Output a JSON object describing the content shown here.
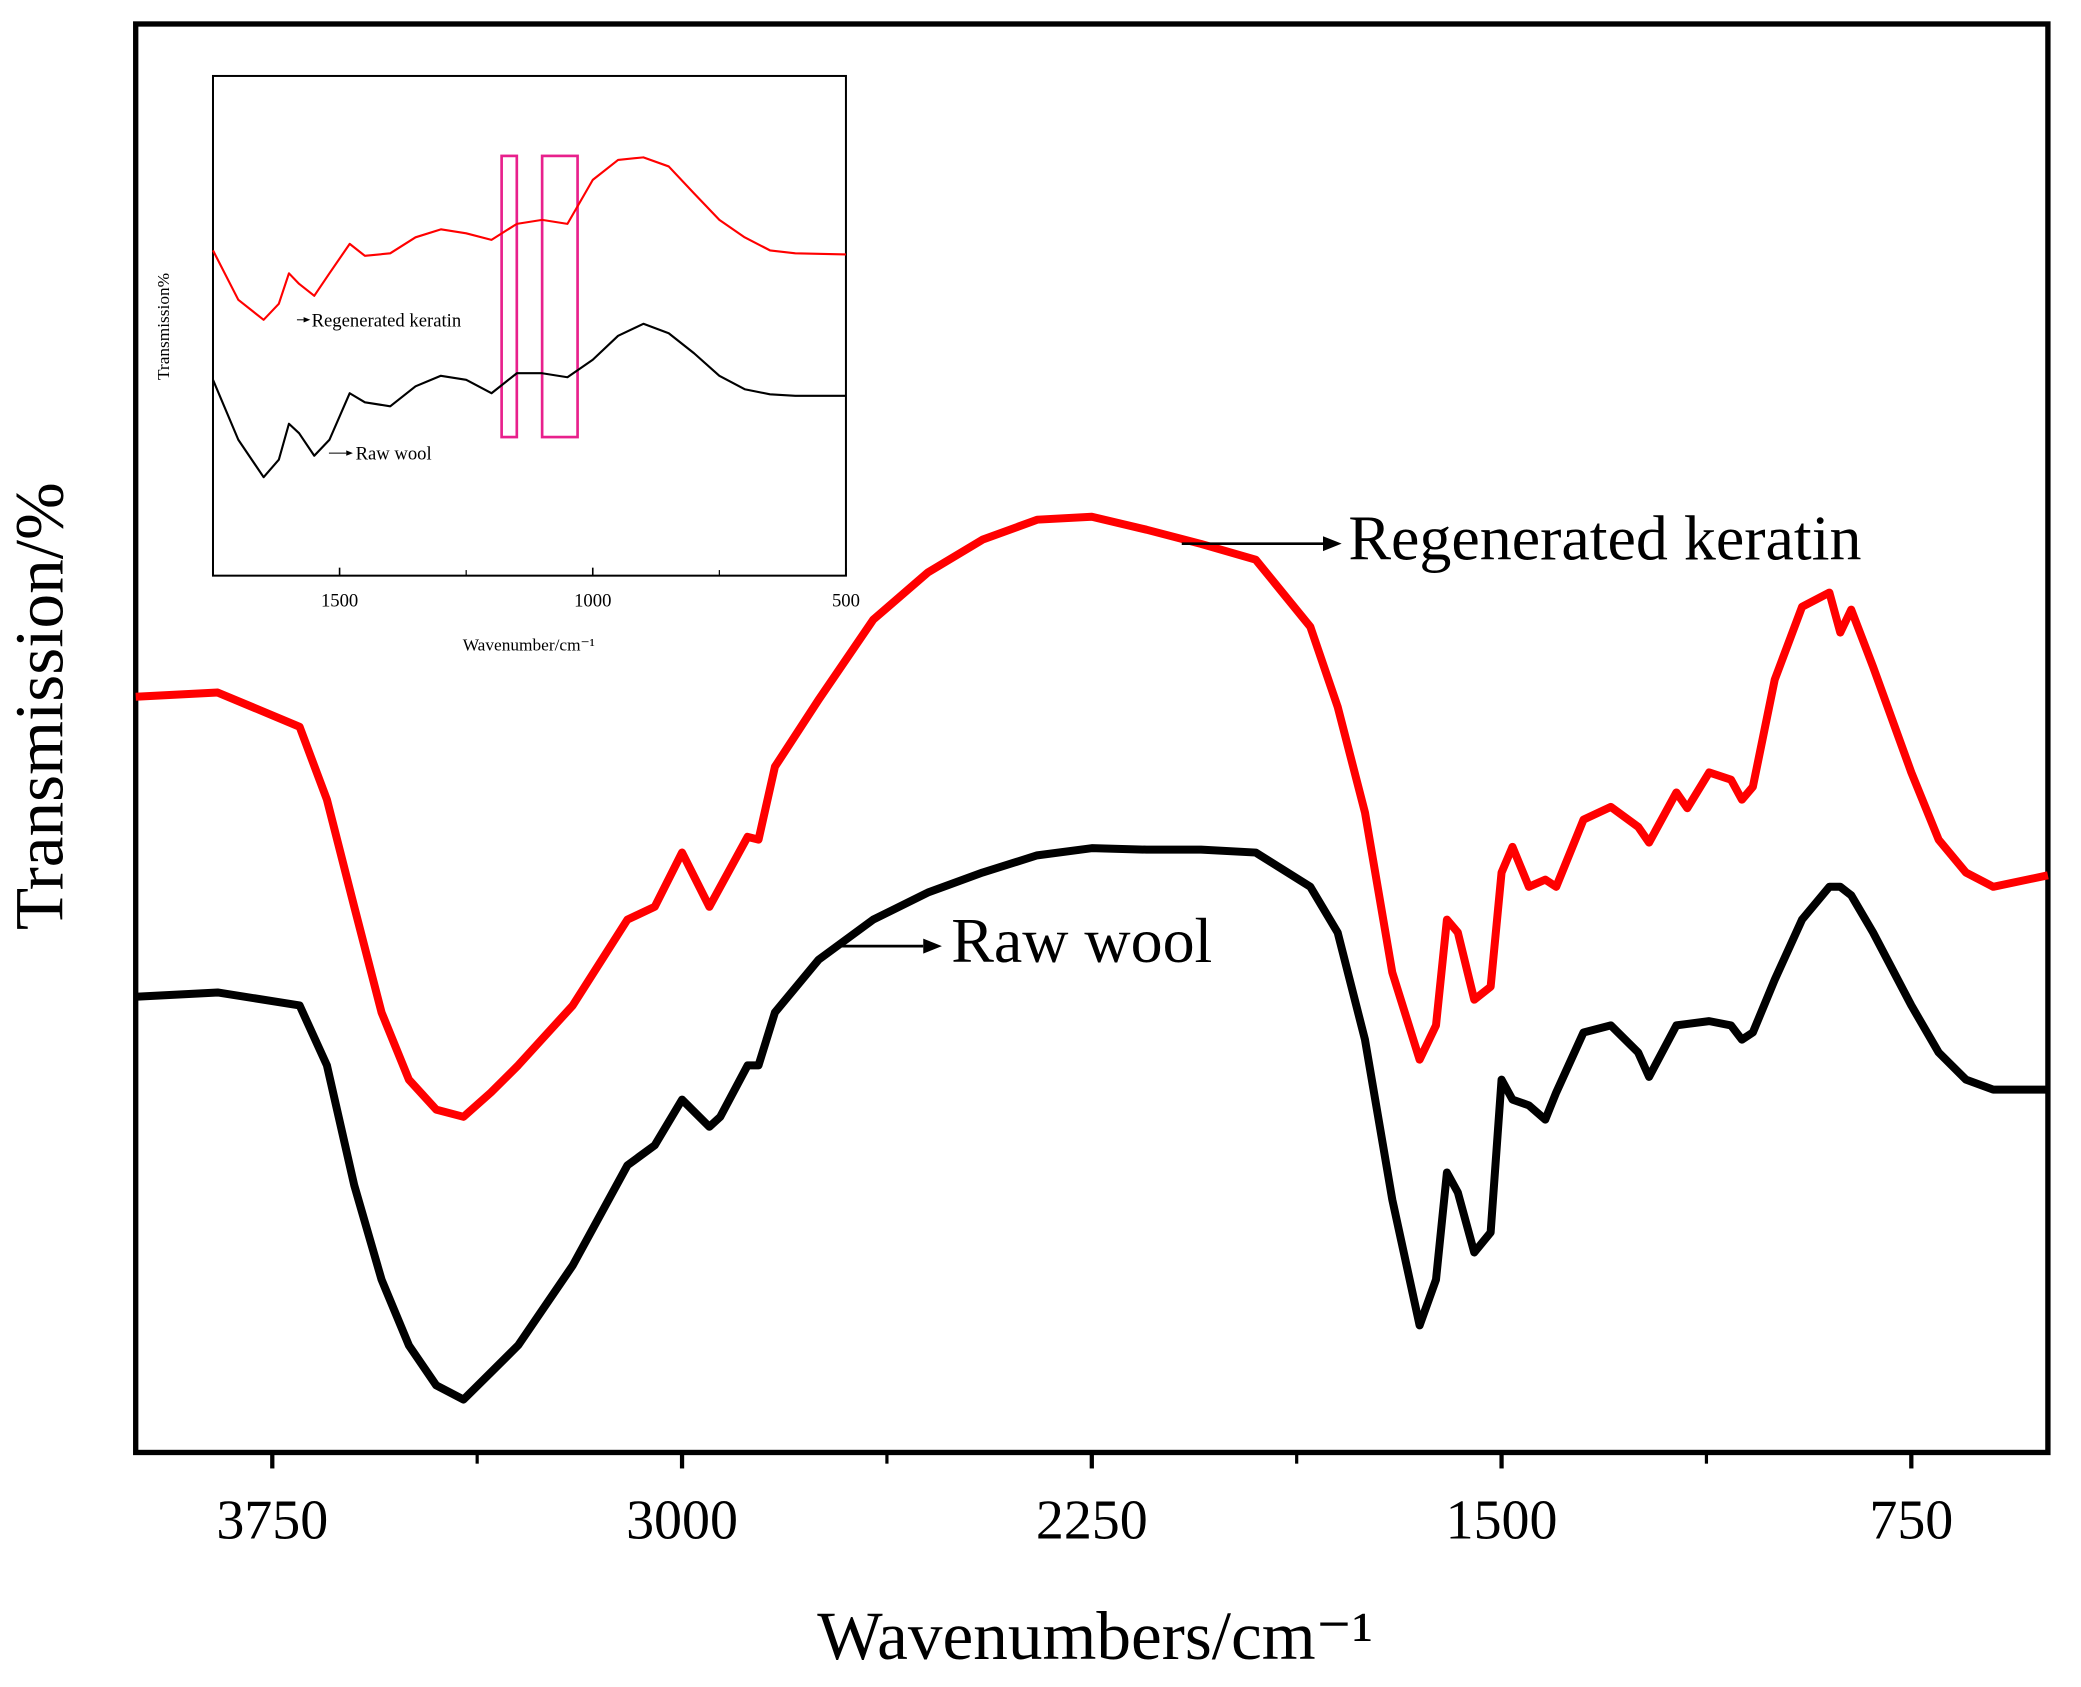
{
  "chart_data": [
    {
      "type": "line",
      "xlabel": "Wavenumbers/cm⁻¹",
      "ylabel": "Transmission/%",
      "xlim": [
        4000,
        500
      ],
      "ylim": [
        0,
        100
      ],
      "xticks": [
        3750,
        3000,
        2250,
        1500,
        750
      ],
      "xminor_ticks": [
        3375,
        2625,
        1875,
        1125
      ],
      "x": [
        4000,
        3850,
        3700,
        3650,
        3600,
        3550,
        3500,
        3450,
        3400,
        3350,
        3300,
        3200,
        3100,
        3050,
        3000,
        2950,
        2930,
        2880,
        2860,
        2830,
        2750,
        2650,
        2550,
        2450,
        2350,
        2250,
        2150,
        2050,
        1950,
        1850,
        1800,
        1750,
        1700,
        1650,
        1620,
        1600,
        1580,
        1550,
        1520,
        1500,
        1480,
        1450,
        1420,
        1400,
        1350,
        1300,
        1250,
        1230,
        1180,
        1160,
        1120,
        1080,
        1060,
        1040,
        1000,
        950,
        900,
        880,
        860,
        820,
        750,
        700,
        650,
        600,
        500
      ],
      "series": [
        {
          "name": "Regenerated keratin",
          "color": "#ff0000",
          "values": [
            52.9,
            53.2,
            50.8,
            45.7,
            38.2,
            30.8,
            26.1,
            24.0,
            23.5,
            25.2,
            27.1,
            31.3,
            37.3,
            38.2,
            42.0,
            38.2,
            39.6,
            43.1,
            42.9,
            48.0,
            52.7,
            58.3,
            61.6,
            63.9,
            65.3,
            65.5,
            64.6,
            63.6,
            62.5,
            57.8,
            52.2,
            44.8,
            33.6,
            27.5,
            29.9,
            37.3,
            36.4,
            31.7,
            32.6,
            40.6,
            42.4,
            39.6,
            40.1,
            39.6,
            44.3,
            45.2,
            43.8,
            42.7,
            46.2,
            45.1,
            47.6,
            47.1,
            45.7,
            46.6,
            54.1,
            59.2,
            60.2,
            57.4,
            59.0,
            55.0,
            47.6,
            42.9,
            40.6,
            39.6,
            40.4
          ]
        },
        {
          "name": "Raw wool",
          "color": "#000000",
          "values": [
            31.9,
            32.2,
            31.3,
            27.1,
            18.7,
            12.1,
            7.5,
            4.7,
            3.7,
            5.6,
            7.5,
            13.1,
            20.1,
            21.5,
            24.7,
            22.8,
            23.5,
            27.1,
            27.1,
            30.8,
            34.5,
            37.3,
            39.2,
            40.6,
            41.8,
            42.3,
            42.2,
            42.2,
            42.0,
            39.6,
            36.4,
            28.9,
            17.7,
            8.9,
            12.1,
            19.6,
            18.2,
            14.0,
            15.4,
            26.1,
            24.7,
            24.3,
            23.3,
            25.2,
            29.4,
            29.9,
            28.0,
            26.3,
            29.9,
            30.0,
            30.2,
            29.9,
            28.9,
            29.4,
            33.1,
            37.3,
            39.6,
            39.6,
            39.0,
            36.4,
            31.3,
            28.0,
            26.1,
            25.4,
            25.4
          ]
        }
      ]
    },
    {
      "type": "line",
      "xlabel": "Wavenumber/cm⁻¹",
      "ylabel": "Transmission%",
      "xlim": [
        1750,
        500
      ],
      "ylim": [
        0,
        100
      ],
      "xticks": [
        1500,
        1000,
        500
      ],
      "xminor_ticks": [
        1250,
        750
      ],
      "highlight_ranges": [
        [
          1180,
          1150
        ],
        [
          1100,
          1030
        ]
      ],
      "highlight_color": "#e8208c",
      "x": [
        1750,
        1700,
        1650,
        1620,
        1600,
        1580,
        1550,
        1520,
        1480,
        1450,
        1400,
        1350,
        1300,
        1250,
        1200,
        1150,
        1100,
        1050,
        1000,
        950,
        900,
        850,
        800,
        750,
        700,
        650,
        600,
        500
      ],
      "series": [
        {
          "name": "Regenerated keratin",
          "color": "#ff0000",
          "values": [
            65.1,
            55.2,
            51.2,
            54.4,
            60.5,
            58.4,
            56.0,
            60.5,
            66.4,
            64.0,
            64.5,
            67.7,
            69.3,
            68.5,
            67.2,
            70.4,
            71.2,
            70.4,
            79.2,
            83.2,
            83.7,
            81.9,
            76.5,
            71.2,
            67.7,
            65.1,
            64.5,
            64.3
          ]
        },
        {
          "name": "Raw wool",
          "color": "#000000",
          "values": [
            39.2,
            27.2,
            19.7,
            23.2,
            30.4,
            28.5,
            24.0,
            27.2,
            36.5,
            34.7,
            33.9,
            37.9,
            40.0,
            39.2,
            36.5,
            40.5,
            40.5,
            39.7,
            43.2,
            48.0,
            50.4,
            48.5,
            44.5,
            40.0,
            37.3,
            36.3,
            36.0,
            36.0
          ]
        }
      ]
    }
  ]
}
